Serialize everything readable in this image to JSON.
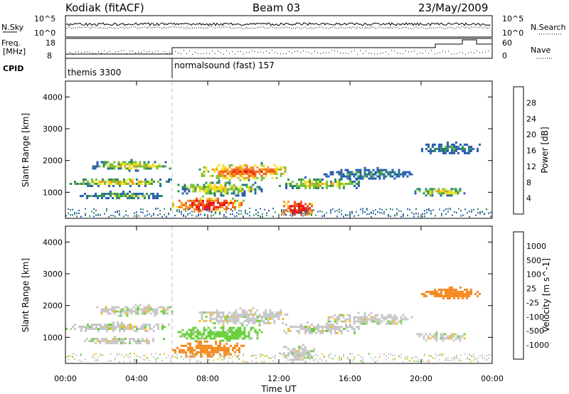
{
  "header": {
    "radar": "Kodiak (fitACF)",
    "beam": "Beam 03",
    "date": "23/May/2009"
  },
  "top_panel": {
    "left_label_1": "N.Sky",
    "left_label_2": "Freq.",
    "left_label_3": "[MHz]",
    "cpid_label": "CPID",
    "right_label_1": "N.Search",
    "right_label_2": "Nave",
    "noise_ticks_left": [
      "10^5",
      "10^0"
    ],
    "noise_ticks_right": [
      "10^5",
      "10^0"
    ],
    "freq_ticks": [
      "18",
      "8"
    ],
    "nave_ticks": [
      "60",
      "0"
    ],
    "cpid_segments": [
      {
        "label": "themis 3300",
        "start_hour": 0
      },
      {
        "label": "normalsound (fast) 157",
        "start_hour": 6
      }
    ]
  },
  "chart_data": [
    {
      "type": "heatmap",
      "name": "power",
      "ylabel": "Slant Range [km]",
      "xlabel": "",
      "xlim": [
        0,
        24
      ],
      "ylim": [
        180,
        4500
      ],
      "x_ticks": [
        "00:00",
        "04:00",
        "08:00",
        "12:00",
        "16:00",
        "20:00",
        "00:00"
      ],
      "y_ticks": [
        "1000",
        "2000",
        "3000",
        "4000"
      ],
      "colorbar": {
        "label": "Power [dB]",
        "ticks": [
          "4",
          "8",
          "12",
          "16",
          "20",
          "24",
          "28"
        ],
        "colors": [
          "#1f1fff",
          "#2a5fb0",
          "#2e8f5a",
          "#7cc23a",
          "#f0e020",
          "#f59a20",
          "#f05a1a",
          "#e81010"
        ]
      },
      "echo_regions": [
        {
          "t0": 0.0,
          "t1": 6.0,
          "r0": 1200,
          "r1": 1500,
          "level": 16
        },
        {
          "t0": 1.5,
          "t1": 6.0,
          "r0": 1700,
          "r1": 2050,
          "level": 16
        },
        {
          "t0": 0.8,
          "t1": 5.5,
          "r0": 800,
          "r1": 1050,
          "level": 12
        },
        {
          "t0": 6.0,
          "t1": 10.0,
          "r0": 380,
          "r1": 900,
          "level": 28
        },
        {
          "t0": 6.3,
          "t1": 11.0,
          "r0": 900,
          "r1": 1400,
          "level": 16
        },
        {
          "t0": 7.5,
          "t1": 12.5,
          "r0": 1400,
          "r1": 1950,
          "level": 24
        },
        {
          "t0": 12.0,
          "t1": 14.0,
          "r0": 250,
          "r1": 800,
          "level": 28
        },
        {
          "t0": 12.0,
          "t1": 16.5,
          "r0": 1100,
          "r1": 1500,
          "level": 16
        },
        {
          "t0": 14.5,
          "t1": 19.5,
          "r0": 1400,
          "r1": 1800,
          "level": 8
        },
        {
          "t0": 19.5,
          "t1": 22.5,
          "r0": 900,
          "r1": 1200,
          "level": 16
        },
        {
          "t0": 20.0,
          "t1": 23.3,
          "r0": 2200,
          "r1": 2600,
          "level": 8
        }
      ]
    },
    {
      "type": "heatmap",
      "name": "velocity",
      "ylabel": "Slant Range [km]",
      "xlabel": "Time UT",
      "xlim": [
        0,
        24
      ],
      "ylim": [
        180,
        4500
      ],
      "x_ticks": [
        "00:00",
        "04:00",
        "08:00",
        "12:00",
        "16:00",
        "20:00",
        "00:00"
      ],
      "y_ticks": [
        "1000",
        "2000",
        "3000",
        "4000"
      ],
      "colorbar": {
        "label": "Velocity [m s^-1]",
        "ticks": [
          "1000",
          "500",
          "100",
          "25",
          "-25",
          "-100",
          "-500",
          "-1000"
        ],
        "colors": [
          "#2030c0",
          "#2a70a0",
          "#2e9a50",
          "#6cd040",
          "#c8c8c8",
          "#f0c020",
          "#f58a20",
          "#f05010",
          "#e81010"
        ]
      },
      "echo_regions": [
        {
          "t0": 0.0,
          "t1": 6.0,
          "r0": 1200,
          "r1": 1500,
          "vel": 0
        },
        {
          "t0": 1.5,
          "t1": 6.0,
          "r0": 1700,
          "r1": 2050,
          "vel": 0
        },
        {
          "t0": 0.8,
          "t1": 5.5,
          "r0": 800,
          "r1": 1050,
          "vel": 0
        },
        {
          "t0": 6.0,
          "t1": 10.0,
          "r0": 380,
          "r1": 900,
          "vel": -150
        },
        {
          "t0": 6.3,
          "t1": 11.0,
          "r0": 900,
          "r1": 1400,
          "vel": 50
        },
        {
          "t0": 7.5,
          "t1": 12.5,
          "r0": 1400,
          "r1": 1950,
          "vel": 0
        },
        {
          "t0": 12.0,
          "t1": 14.0,
          "r0": 250,
          "r1": 800,
          "vel": 0
        },
        {
          "t0": 12.0,
          "t1": 16.5,
          "r0": 1100,
          "r1": 1500,
          "vel": 0
        },
        {
          "t0": 14.5,
          "t1": 19.5,
          "r0": 1400,
          "r1": 1800,
          "vel": 0
        },
        {
          "t0": 19.5,
          "t1": 22.5,
          "r0": 900,
          "r1": 1200,
          "vel": 0
        },
        {
          "t0": 20.0,
          "t1": 23.3,
          "r0": 2200,
          "r1": 2600,
          "vel": -150
        }
      ]
    }
  ]
}
